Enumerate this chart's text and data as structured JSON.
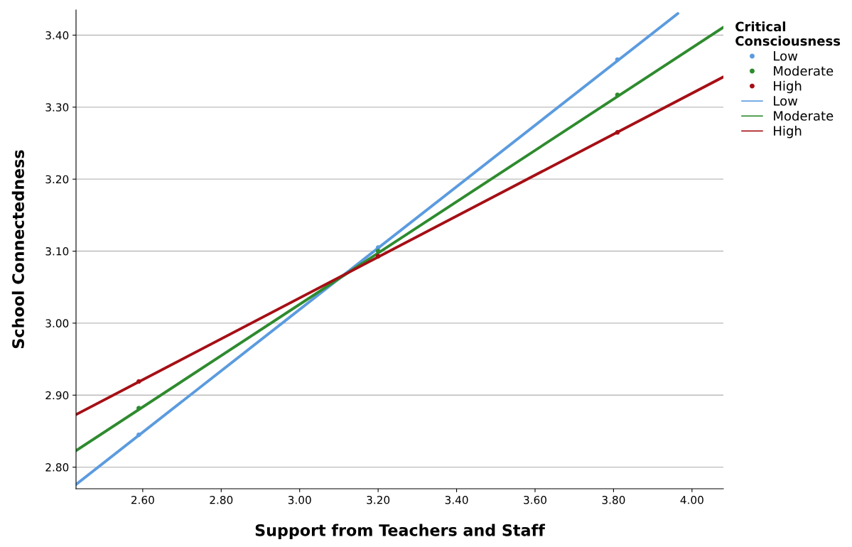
{
  "chart_data": {
    "type": "scatter",
    "xlabel": "Support from Teachers and Staff",
    "ylabel": "School Connectedness",
    "legend_title": "Critical\nConsciousness",
    "xlim": [
      2.43,
      4.08
    ],
    "ylim": [
      2.77,
      3.435
    ],
    "xticks": [
      {
        "value": 2.6,
        "label": "2.60"
      },
      {
        "value": 2.8,
        "label": "2.80"
      },
      {
        "value": 3.0,
        "label": "3.00"
      },
      {
        "value": 3.2,
        "label": "3.20"
      },
      {
        "value": 3.4,
        "label": "3.40"
      },
      {
        "value": 3.6,
        "label": "3.60"
      },
      {
        "value": 3.8,
        "label": "3.80"
      },
      {
        "value": 4.0,
        "label": "4.00"
      }
    ],
    "yticks": [
      {
        "value": 2.8,
        "label": "2.80"
      },
      {
        "value": 2.9,
        "label": "2.90"
      },
      {
        "value": 3.0,
        "label": "3.00"
      },
      {
        "value": 3.1,
        "label": "3.10"
      },
      {
        "value": 3.2,
        "label": "3.20"
      },
      {
        "value": 3.3,
        "label": "3.30"
      },
      {
        "value": 3.4,
        "label": "3.40"
      }
    ],
    "grid": "y",
    "legend": "right",
    "series": [
      {
        "name": "Low",
        "marker": "circle",
        "color": "#5b9bdf",
        "x": [
          2.59,
          3.2,
          3.81
        ],
        "values": [
          2.845,
          3.105,
          3.366
        ]
      },
      {
        "name": "Moderate",
        "marker": "circle",
        "color": "#2e8b2e",
        "x": [
          2.59,
          3.2,
          3.81
        ],
        "values": [
          2.882,
          3.1,
          3.317
        ]
      },
      {
        "name": "High",
        "marker": "circle",
        "color": "#a50f15",
        "x": [
          2.59,
          3.2,
          3.81
        ],
        "values": [
          2.919,
          3.093,
          3.265
        ]
      },
      {
        "name": "Low",
        "type": "line",
        "marker": "none",
        "color": "#5b9bdf",
        "x": [
          2.43,
          3.964
        ],
        "values": [
          2.776,
          3.43
        ]
      },
      {
        "name": "Moderate",
        "type": "line",
        "marker": "none",
        "color": "#2e8b2e",
        "x": [
          2.43,
          4.08
        ],
        "values": [
          2.823,
          3.411
        ]
      },
      {
        "name": "High",
        "type": "line",
        "marker": "none",
        "color": "#a50f15",
        "x": [
          2.43,
          4.08
        ],
        "values": [
          2.873,
          3.342
        ]
      }
    ]
  }
}
